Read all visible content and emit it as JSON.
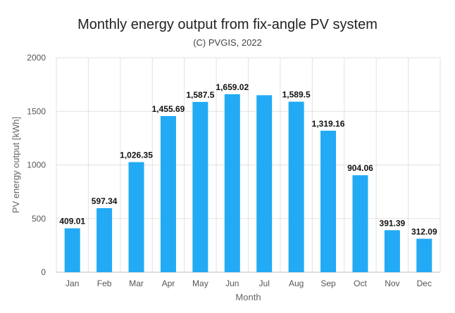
{
  "chart_data": {
    "type": "bar",
    "title": "Monthly energy output from fix-angle PV system",
    "subtitle": "(C) PVGIS, 2022",
    "xlabel": "Month",
    "ylabel": "PV energy output [kWh]",
    "categories": [
      "Jan",
      "Feb",
      "Mar",
      "Apr",
      "May",
      "Jun",
      "Jul",
      "Aug",
      "Sep",
      "Oct",
      "Nov",
      "Dec"
    ],
    "values": [
      409.01,
      597.34,
      1026.35,
      1455.69,
      1587.5,
      1659.02,
      1650,
      1589.5,
      1319.16,
      904.06,
      391.39,
      312.09
    ],
    "data_labels": [
      "409.01",
      "597.34",
      "1,026.35",
      "1,455.69",
      "1,587.5",
      "1,659.02",
      "",
      "1,589.5",
      "1,319.16",
      "904.06",
      "391.39",
      "312.09"
    ],
    "ylim": [
      0,
      2000
    ],
    "yticks": [
      "0",
      "500",
      "1000",
      "1500",
      "2000"
    ],
    "grid": true,
    "legend": "none",
    "bar_color": "#22aaf5"
  }
}
